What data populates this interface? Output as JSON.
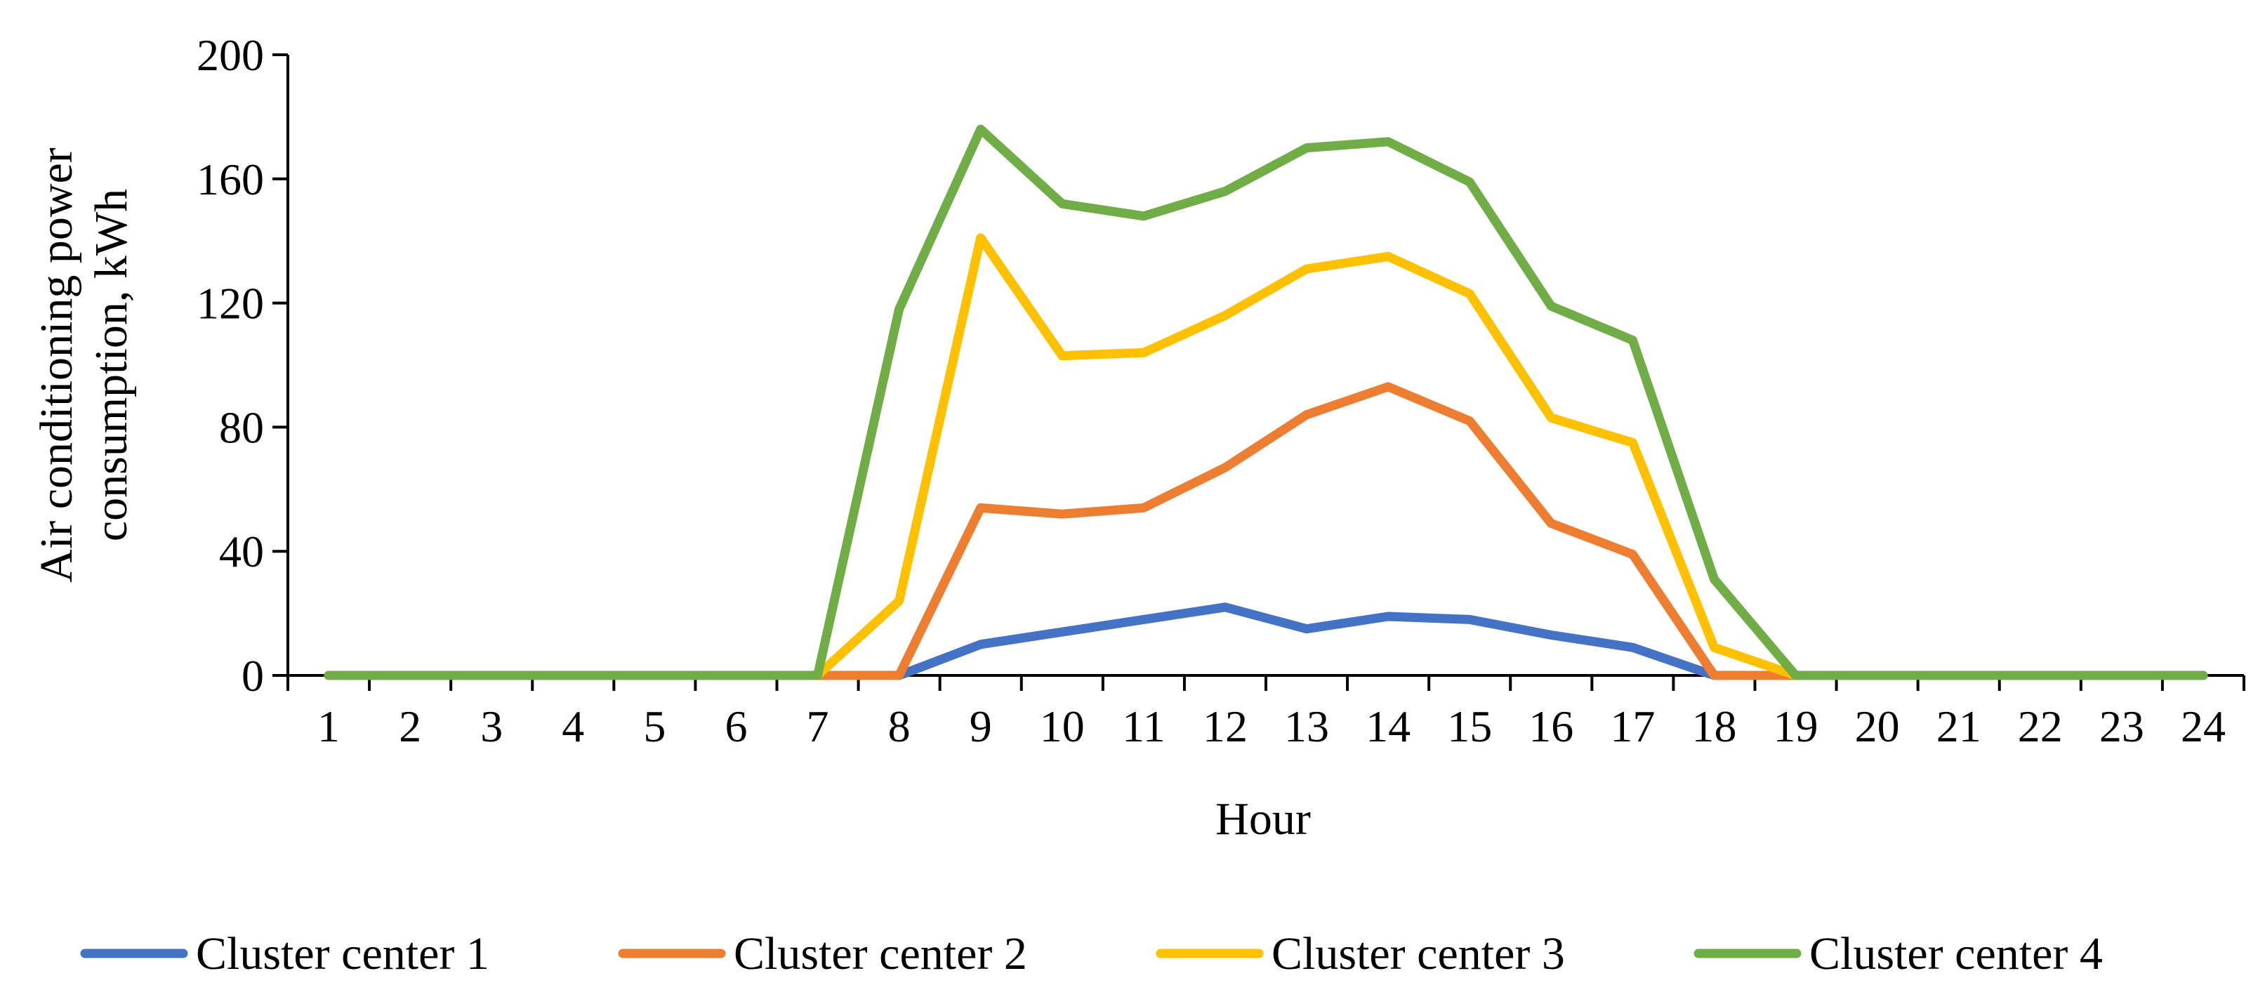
{
  "chart_data": {
    "type": "line",
    "title": "",
    "xlabel": "Hour",
    "ylabel": "Air conditioning power consumption, kWh",
    "categories": [
      "1",
      "2",
      "3",
      "4",
      "5",
      "6",
      "7",
      "8",
      "9",
      "10",
      "11",
      "12",
      "13",
      "14",
      "15",
      "16",
      "17",
      "18",
      "19",
      "20",
      "21",
      "22",
      "23",
      "24"
    ],
    "yticks": [
      "0",
      "40",
      "80",
      "120",
      "160",
      "200"
    ],
    "ylim": [
      0,
      200
    ],
    "grid": false,
    "legend_position": "bottom",
    "series": [
      {
        "name": "Cluster center 1",
        "color": "#4472C4",
        "values": [
          0,
          0,
          0,
          0,
          0,
          0,
          0,
          0,
          10,
          14,
          18,
          22,
          15,
          19,
          18,
          13,
          9,
          0,
          0,
          0,
          0,
          0,
          0,
          0
        ]
      },
      {
        "name": "Cluster center 2",
        "color": "#ED7D31",
        "values": [
          0,
          0,
          0,
          0,
          0,
          0,
          0,
          0,
          54,
          52,
          54,
          67,
          84,
          93,
          82,
          49,
          39,
          0,
          0,
          0,
          0,
          0,
          0,
          0
        ]
      },
      {
        "name": "Cluster center 3",
        "color": "#FFC000",
        "values": [
          0,
          0,
          0,
          0,
          0,
          0,
          0,
          24,
          141,
          103,
          104,
          116,
          131,
          135,
          123,
          83,
          75,
          9,
          0,
          0,
          0,
          0,
          0,
          0
        ]
      },
      {
        "name": "Cluster center 4",
        "color": "#70AD47",
        "values": [
          0,
          0,
          0,
          0,
          0,
          0,
          0,
          118,
          176,
          152,
          148,
          156,
          170,
          172,
          159,
          119,
          108,
          31,
          0,
          0,
          0,
          0,
          0,
          0
        ]
      }
    ]
  }
}
